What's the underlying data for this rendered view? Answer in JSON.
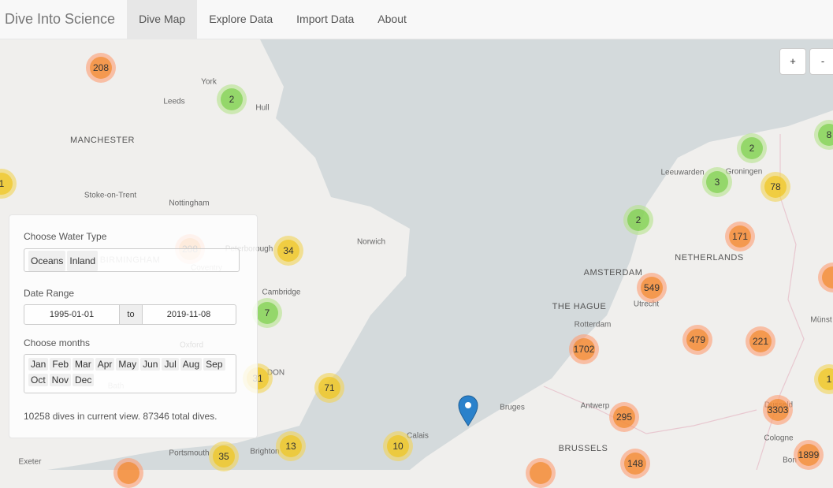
{
  "nav": {
    "brand": "Dive Into Science",
    "items": [
      "Dive Map",
      "Explore Data",
      "Import Data",
      "About"
    ],
    "active": "Dive Map"
  },
  "zoom": {
    "in": "+",
    "out": "-"
  },
  "map_labels": [
    "York",
    "Leeds",
    "Hull",
    "MANCHESTER",
    "Stoke-on-Trent",
    "Nottingham",
    "Peterborough",
    "BIRMINGHAM",
    "Coventry",
    "Norwich",
    "Cambridge",
    "Oxford",
    "DON",
    "Bath",
    "Portsmouth",
    "Brighton",
    "Exeter",
    "Calais",
    "Bruges",
    "Antwerp",
    "BRUSSELS",
    "Leeuwarden",
    "Groningen",
    "NETHERLANDS",
    "AMSTERDAM",
    "THE HAGUE",
    "Utrecht",
    "Rotterdam",
    "Münst",
    "Dusseld",
    "Cologne",
    "Bon"
  ],
  "clusters": [
    {
      "count": 208,
      "color": "orange"
    },
    {
      "count": 2,
      "color": "green"
    },
    {
      "count": 1,
      "color": "yellow"
    },
    {
      "count": 208,
      "color": "orange"
    },
    {
      "count": 34,
      "color": "yellow"
    },
    {
      "count": 7,
      "color": "green"
    },
    {
      "count": 31,
      "color": "yellow"
    },
    {
      "count": 71,
      "color": "yellow"
    },
    {
      "count": 13,
      "color": "yellow"
    },
    {
      "count": 35,
      "color": "yellow"
    },
    {
      "count": 10,
      "color": "yellow"
    },
    {
      "count": 2,
      "color": "green"
    },
    {
      "count": 8,
      "color": "green"
    },
    {
      "count": 3,
      "color": "green"
    },
    {
      "count": 78,
      "color": "yellow"
    },
    {
      "count": 2,
      "color": "green"
    },
    {
      "count": 171,
      "color": "orange"
    },
    {
      "count": 549,
      "color": "orange"
    },
    {
      "count": 1702,
      "color": "orange"
    },
    {
      "count": 479,
      "color": "orange"
    },
    {
      "count": 221,
      "color": "orange"
    },
    {
      "count": 1,
      "color": "yellow"
    },
    {
      "count": 295,
      "color": "orange"
    },
    {
      "count": 3303,
      "color": "orange"
    },
    {
      "count": 148,
      "color": "orange"
    },
    {
      "count": 1899,
      "color": "orange"
    }
  ],
  "panel": {
    "water_type": {
      "label": "Choose Water Type",
      "selected": [
        "Oceans",
        "Inland"
      ]
    },
    "date_range": {
      "label": "Date Range",
      "from": "1995-01-01",
      "separator": "to",
      "to": "2019-11-08"
    },
    "months": {
      "label": "Choose months",
      "items": [
        "Jan",
        "Feb",
        "Mar",
        "Apr",
        "May",
        "Jun",
        "Jul",
        "Aug",
        "Sep",
        "Oct",
        "Nov",
        "Dec"
      ]
    },
    "status": "10258 dives in current view. 87346 total dives."
  }
}
